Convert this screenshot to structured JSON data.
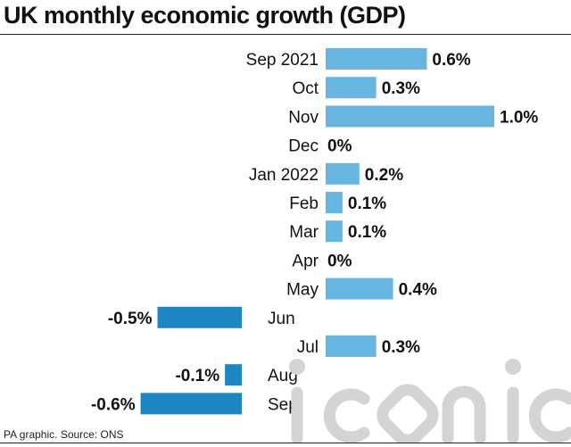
{
  "title": "UK monthly economic growth (GDP)",
  "source": "PA graphic. Source: ONS",
  "watermark_text": "iconic",
  "colors": {
    "positive": "#67b6e2",
    "negative": "#1e86c2",
    "text": "#111111",
    "watermark": "#d4d4d4"
  },
  "chart_data": {
    "type": "bar",
    "orientation": "horizontal",
    "title": "UK monthly economic growth (GDP)",
    "categories": [
      "Sep 2021",
      "Oct",
      "Nov",
      "Dec",
      "Jan 2022",
      "Feb",
      "Mar",
      "Apr",
      "May",
      "Jun",
      "Jul",
      "Aug",
      "Sep"
    ],
    "values": [
      0.6,
      0.3,
      1.0,
      0,
      0.2,
      0.1,
      0.1,
      0,
      0.4,
      -0.5,
      0.3,
      -0.1,
      -0.6
    ],
    "value_labels": [
      "0.6%",
      "0.3%",
      "1.0%",
      "0%",
      "0.2%",
      "0.1%",
      "0.1%",
      "0%",
      "0.4%",
      "-0.5%",
      "0.3%",
      "-0.1%",
      "-0.6%"
    ],
    "unit": "%",
    "grid": false,
    "legend": "none"
  }
}
